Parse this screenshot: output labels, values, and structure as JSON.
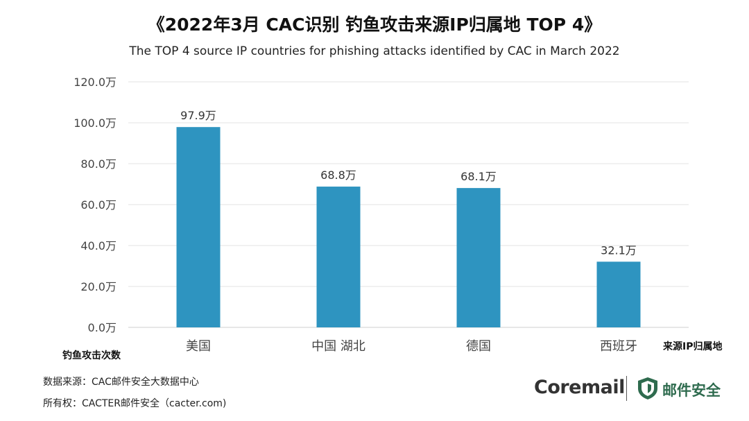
{
  "header": {
    "title": "《2022年3月 CAC识别 钓鱼攻击来源IP归属地 TOP 4》",
    "subtitle": "The TOP 4 source IP countries for phishing attacks identified by CAC in March 2022"
  },
  "chart_data": {
    "type": "bar",
    "categories": [
      "美国",
      "中国 湖北",
      "德国",
      "西班牙"
    ],
    "values": [
      97.9,
      68.8,
      68.1,
      32.1
    ],
    "data_labels": [
      "97.9万",
      "68.8万",
      "68.1万",
      "32.1万"
    ],
    "ylim": [
      0,
      120
    ],
    "yticks": [
      0,
      20,
      40,
      60,
      80,
      100,
      120
    ],
    "ytick_labels": [
      "0.0万",
      "20.0万",
      "40.0万",
      "60.0万",
      "80.0万",
      "100.0万",
      "120.0万"
    ],
    "ylabel": "钓鱼攻击次数",
    "xlabel": "来源IP归属地",
    "grid": true,
    "bar_color": "#2e94c0"
  },
  "footer": {
    "source": "数据来源：CAC邮件安全大数据中心",
    "copyright": "所有权：CACTER邮件安全（cacter.com)",
    "brand": "Coremail",
    "brand_secondary": "邮件安全",
    "brand_color": "#2e6b4e"
  }
}
